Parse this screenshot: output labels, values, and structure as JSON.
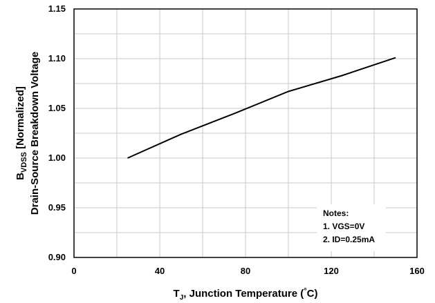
{
  "chart_data": {
    "type": "line",
    "xlabel": "Tj, Junction Temperature (°C)",
    "xlabel_main": "T",
    "xlabel_sub": "J",
    "xlabel_rest": ", Junction Temperature (",
    "xlabel_deg": "°",
    "xlabel_unit": "C)",
    "ylabel_line1_main": "B",
    "ylabel_line1_sub": "VDSS",
    "ylabel_line1_rest": " [Normalized]",
    "ylabel_line2": "Drain-Source Breakdown Voltage",
    "xlim": [
      0,
      160
    ],
    "ylim": [
      0.9,
      1.15
    ],
    "x_ticks": [
      0,
      40,
      80,
      120,
      160
    ],
    "x_tick_labels": [
      "0",
      "40",
      "80",
      "120",
      "160"
    ],
    "y_ticks": [
      0.9,
      0.95,
      1.0,
      1.05,
      1.1,
      1.15
    ],
    "y_tick_labels": [
      "0.90",
      "0.95",
      "1.00",
      "1.05",
      "1.10",
      "1.15"
    ],
    "x_minor_gridlines": [
      20,
      60,
      100,
      140
    ],
    "y_minor_gridlines": [
      0.925,
      0.975,
      1.025,
      1.075,
      1.125
    ],
    "grid": true,
    "line_color": "#000000",
    "series": [
      {
        "x": [
          25,
          50,
          75,
          100,
          125,
          150
        ],
        "values": [
          1.0,
          1.024,
          1.045,
          1.067,
          1.083,
          1.101
        ]
      }
    ],
    "notes": {
      "title": "Notes:",
      "items": [
        "1. VGS=0V",
        "2. ID=0.25mA"
      ]
    }
  }
}
